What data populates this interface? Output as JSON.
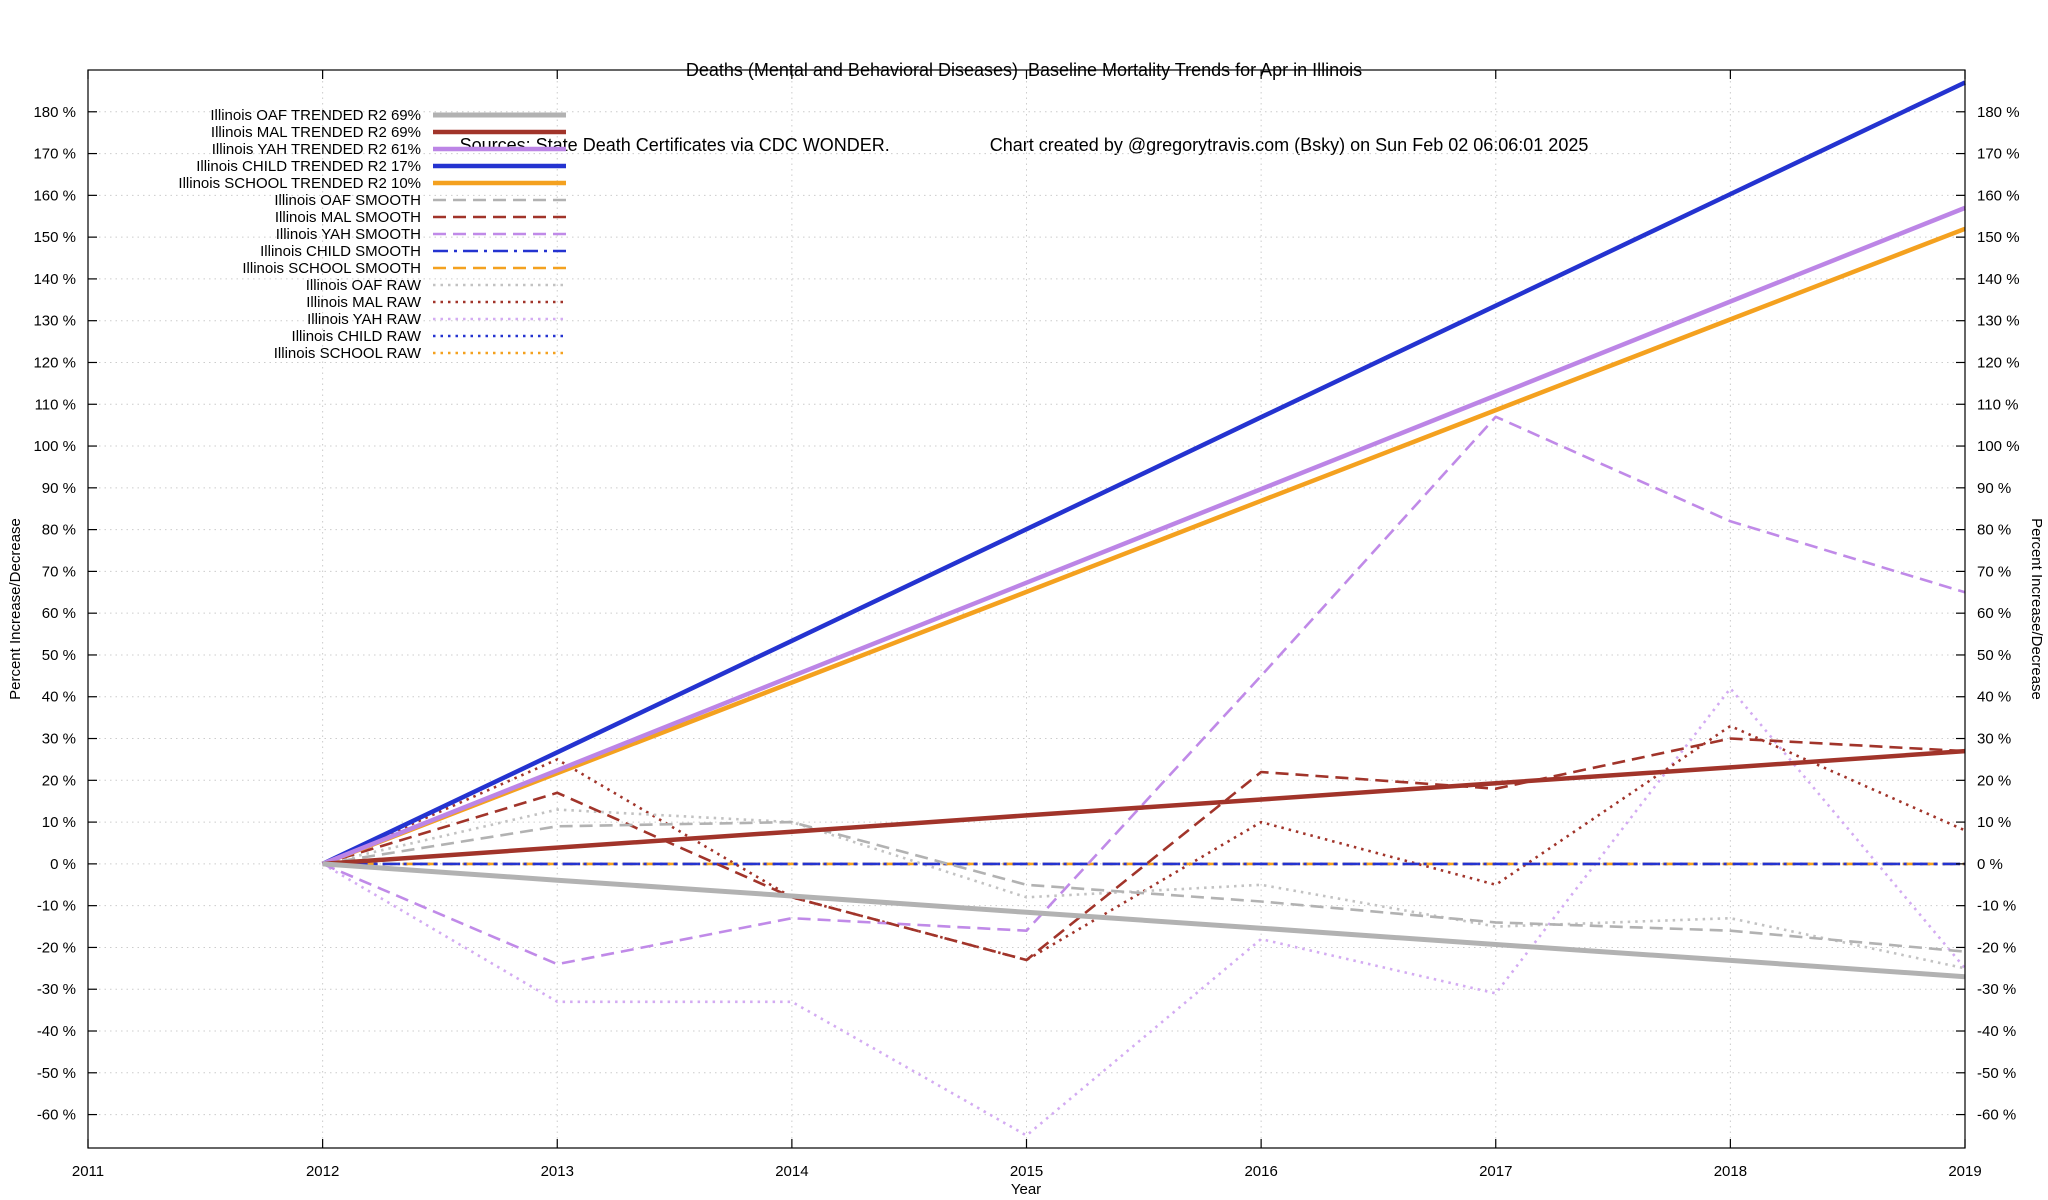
{
  "title": "Deaths (Mental and Behavioral Diseases)  Baseline Mortality Trends for Apr in Illinois",
  "subtitle_left": "Sources: State Death Certificates via CDC WONDER.",
  "subtitle_right": "Chart created by @gregorytravis.com (Bsky) on Sun Feb 02 06:06:01 2025",
  "axes": {
    "x_label": "Year",
    "y_label_left": "Percent Increase/Decrease",
    "y_label_right": "Percent Increase/Decrease",
    "x_ticks": [
      2011,
      2012,
      2013,
      2014,
      2015,
      2016,
      2017,
      2018,
      2019
    ],
    "y_ticks": [
      -60,
      -50,
      -40,
      -30,
      -20,
      -10,
      0,
      10,
      20,
      30,
      40,
      50,
      60,
      70,
      80,
      90,
      100,
      110,
      120,
      130,
      140,
      150,
      160,
      170,
      180
    ],
    "y_tick_suffix": " %"
  },
  "chart_data": {
    "type": "line",
    "x": [
      2012,
      2013,
      2014,
      2015,
      2016,
      2017,
      2018,
      2019
    ],
    "x_range": [
      2011,
      2019
    ],
    "y_range": [
      -68,
      190
    ],
    "grid": true,
    "legend_position": "top-left",
    "series": [
      {
        "name": "oaf-trended",
        "legend": "Illinois OAF TRENDED R2 69%",
        "color": "#b2b2b2",
        "dash": "solid",
        "width": 5,
        "values": [
          0,
          -3.9,
          -7.7,
          -11.6,
          -15.4,
          -19.3,
          -23.1,
          -27
        ]
      },
      {
        "name": "mal-trended",
        "legend": "Illinois MAL TRENDED R2 69%",
        "color": "#a1342a",
        "dash": "solid",
        "width": 4.5,
        "values": [
          0,
          3.9,
          7.7,
          11.6,
          15.4,
          19.3,
          23.1,
          27
        ]
      },
      {
        "name": "yah-trended",
        "legend": "Illinois YAH TRENDED R2 61%",
        "color": "#bc85e6",
        "dash": "solid",
        "width": 4.5,
        "values": [
          0,
          22.4,
          44.9,
          67.3,
          89.7,
          112.1,
          134.6,
          157
        ]
      },
      {
        "name": "child-trended",
        "legend": "Illinois CHILD TRENDED R2 17%",
        "color": "#2433d0",
        "dash": "solid",
        "width": 4.5,
        "values": [
          0,
          26.7,
          53.4,
          80.1,
          106.9,
          133.6,
          160.3,
          187
        ]
      },
      {
        "name": "school-trended",
        "legend": "Illinois SCHOOL TRENDED R2 10%",
        "color": "#f4a11f",
        "dash": "solid",
        "width": 4.5,
        "values": [
          0,
          21.7,
          43.4,
          65.1,
          86.9,
          108.6,
          130.3,
          152
        ]
      },
      {
        "name": "oaf-smooth",
        "legend": "Illinois OAF SMOOTH",
        "color": "#b2b2b2",
        "dash": "dash",
        "width": 2.6,
        "values": [
          0,
          9,
          10,
          -5,
          -9,
          -14,
          -16,
          -21
        ]
      },
      {
        "name": "mal-smooth",
        "legend": "Illinois MAL SMOOTH",
        "color": "#a1342a",
        "dash": "dash",
        "width": 2.6,
        "values": [
          0,
          17,
          -8,
          -23,
          22,
          18,
          30,
          27
        ]
      },
      {
        "name": "yah-smooth",
        "legend": "Illinois YAH SMOOTH",
        "color": "#c08ae8",
        "dash": "dash",
        "width": 2.6,
        "values": [
          0,
          -24,
          -13,
          -16,
          45,
          107,
          82,
          65
        ]
      },
      {
        "name": "child-smooth",
        "legend": "Illinois CHILD SMOOTH",
        "color": "#2433d0",
        "dash": "dashdot",
        "width": 2.6,
        "values": [
          0,
          0,
          0,
          0,
          0,
          0,
          0,
          0
        ]
      },
      {
        "name": "school-smooth",
        "legend": "Illinois SCHOOL SMOOTH",
        "color": "#f4a11f",
        "dash": "dash",
        "width": 2.6,
        "values": [
          0,
          0,
          0,
          0,
          0,
          0,
          0,
          0
        ]
      },
      {
        "name": "oaf-raw",
        "legend": "Illinois OAF RAW",
        "color": "#c2c2c2",
        "dash": "dot",
        "width": 2.6,
        "values": [
          0,
          13,
          10,
          -8,
          -5,
          -15,
          -13,
          -25
        ]
      },
      {
        "name": "mal-raw",
        "legend": "Illinois MAL RAW",
        "color": "#a1342a",
        "dash": "dot",
        "width": 2.6,
        "values": [
          0,
          25,
          -8,
          -23,
          10,
          -5,
          33,
          8
        ]
      },
      {
        "name": "yah-raw",
        "legend": "Illinois YAH RAW",
        "color": "#d3abf2",
        "dash": "dot",
        "width": 2.6,
        "values": [
          0,
          -33,
          -33,
          -65,
          -18,
          -31,
          42,
          -25
        ]
      },
      {
        "name": "child-raw",
        "legend": "Illinois CHILD RAW",
        "color": "#2433d0",
        "dash": "dot",
        "width": 2.6,
        "values": [
          0,
          0,
          0,
          0,
          0,
          0,
          0,
          0
        ]
      },
      {
        "name": "school-raw",
        "legend": "Illinois SCHOOL RAW",
        "color": "#f4a11f",
        "dash": "dot",
        "width": 2.6,
        "values": [
          0,
          0,
          0,
          0,
          0,
          0,
          0,
          0
        ]
      }
    ]
  }
}
